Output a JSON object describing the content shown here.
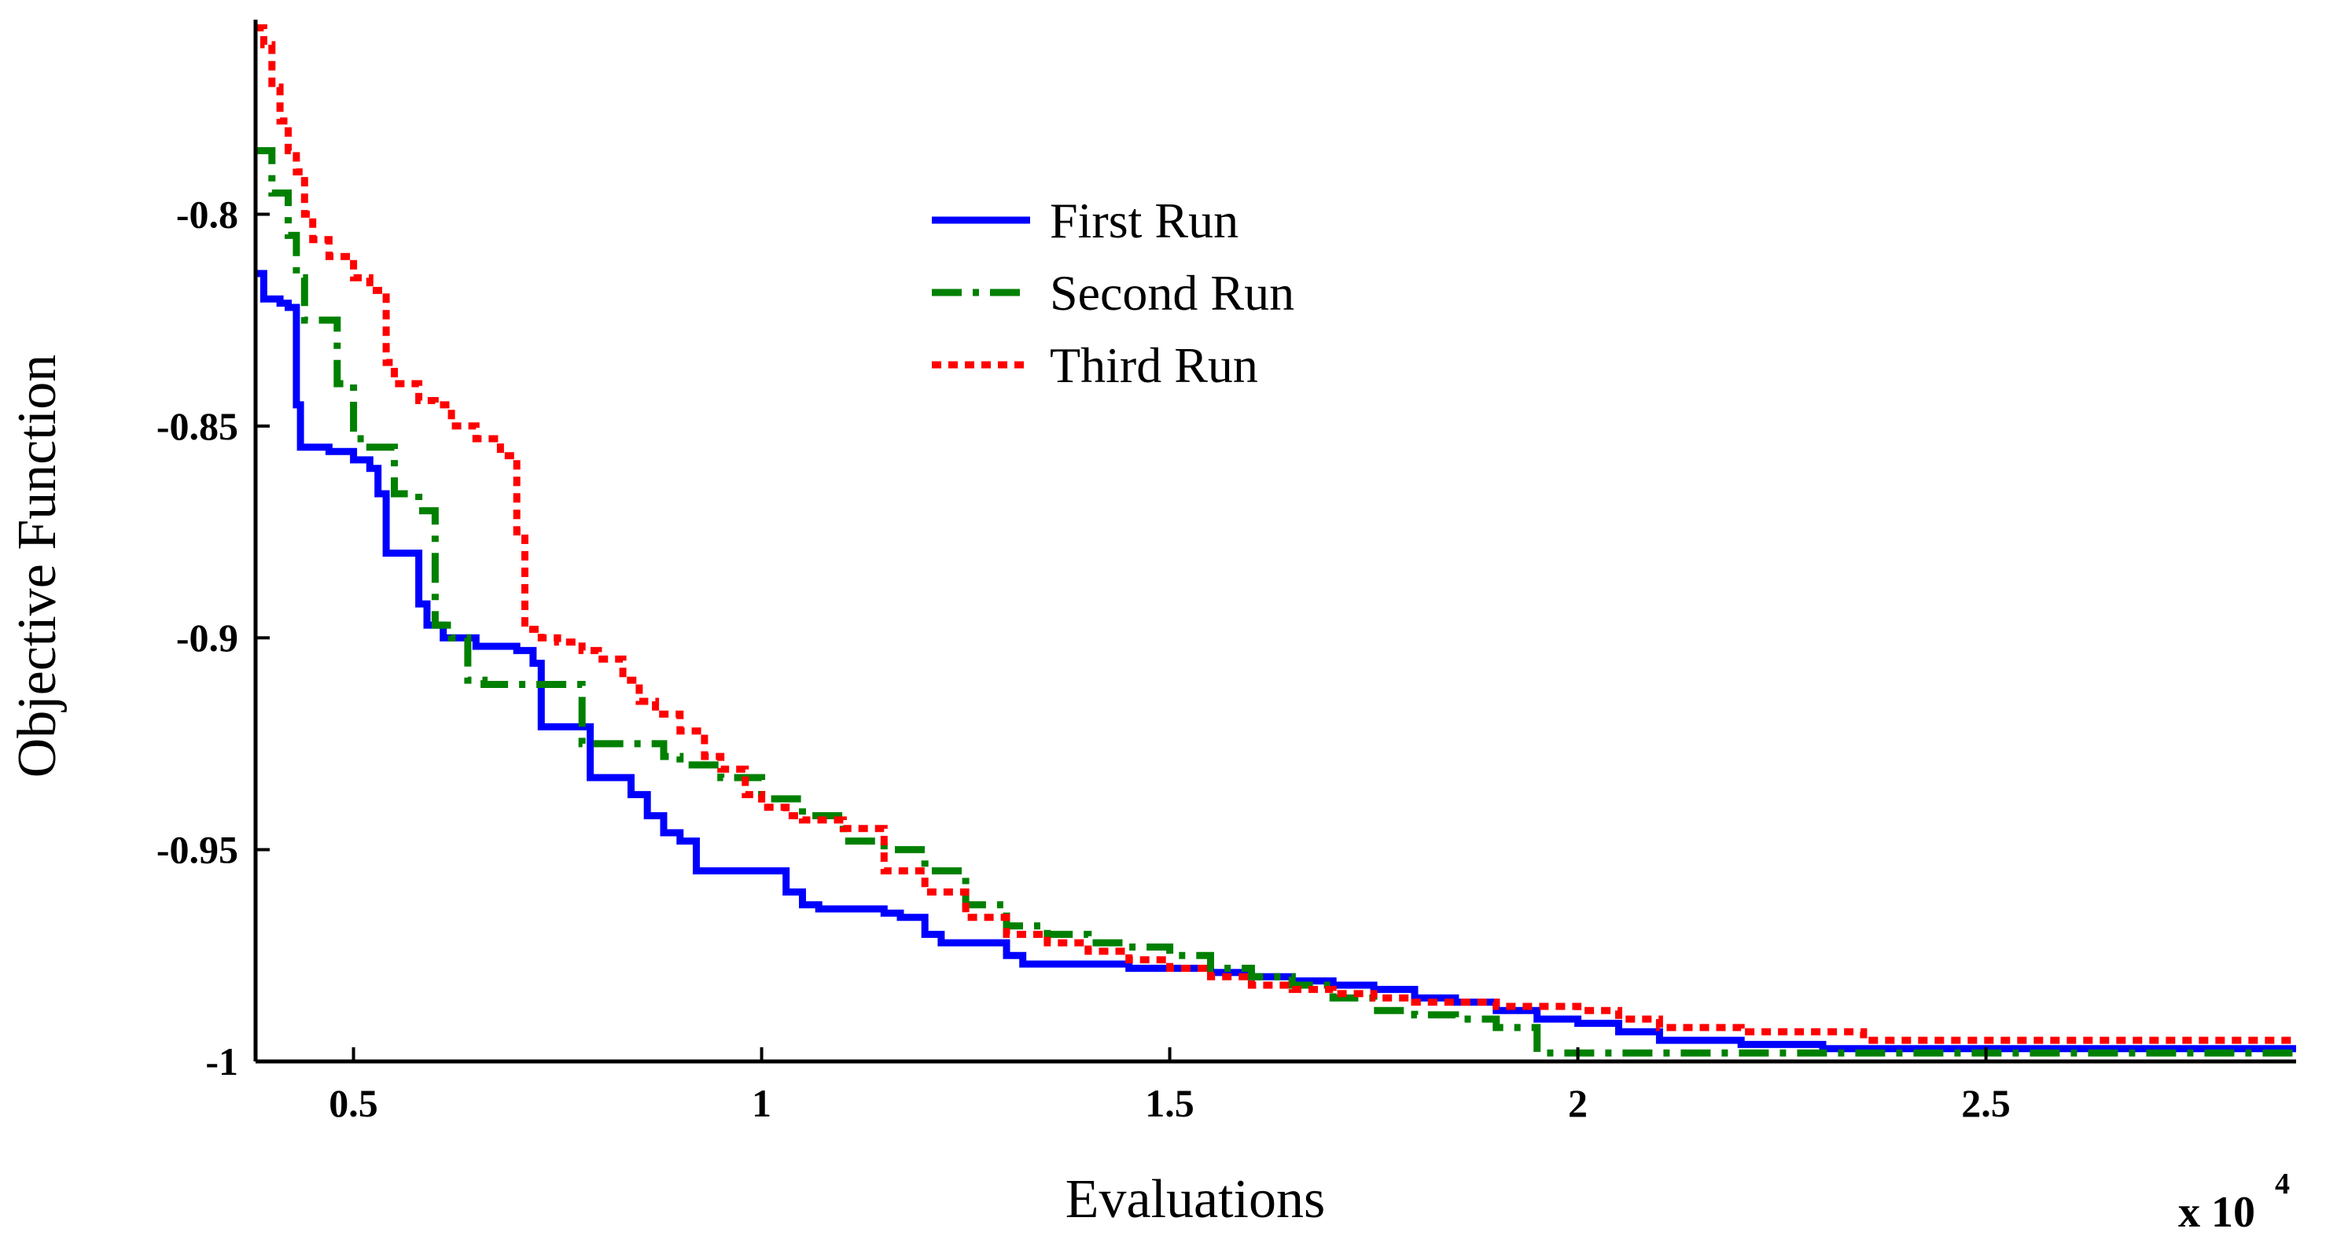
{
  "chart_data": {
    "type": "line",
    "title": "",
    "xlabel": "Evaluations",
    "ylabel": "Objective Function",
    "x_multiplier_base": "x 10",
    "x_multiplier_exp": "4",
    "xlim": [
      0.38,
      2.88
    ],
    "ylim": [
      -1.0,
      -0.755
    ],
    "x_ticks": [
      0.5,
      1,
      1.5,
      2,
      2.5
    ],
    "x_tick_labels": [
      "0.5",
      "1",
      "1.5",
      "2",
      "2.5"
    ],
    "y_ticks": [
      -0.8,
      -0.85,
      -0.9,
      -0.95,
      -1
    ],
    "y_tick_labels": [
      "-0.8",
      "-0.85",
      "-0.9",
      "-0.95",
      "-1"
    ],
    "grid": false,
    "legend_position": "top-center",
    "series": [
      {
        "name": "First Run",
        "color": "#0000ff",
        "style": "solid",
        "x": [
          0.38,
          0.39,
          0.41,
          0.42,
          0.43,
          0.435,
          0.47,
          0.5,
          0.52,
          0.53,
          0.54,
          0.58,
          0.59,
          0.61,
          0.65,
          0.7,
          0.72,
          0.73,
          0.78,
          0.79,
          0.83,
          0.84,
          0.86,
          0.88,
          0.9,
          0.92,
          0.94,
          0.96,
          1.0,
          1.03,
          1.05,
          1.07,
          1.1,
          1.15,
          1.17,
          1.2,
          1.22,
          1.26,
          1.3,
          1.32,
          1.35,
          1.4,
          1.45,
          1.5,
          1.55,
          1.6,
          1.65,
          1.7,
          1.75,
          1.8,
          1.85,
          1.9,
          1.95,
          2.0,
          2.05,
          2.1,
          2.2,
          2.3,
          2.5,
          2.7,
          2.88
        ],
        "y": [
          -0.814,
          -0.82,
          -0.821,
          -0.822,
          -0.845,
          -0.855,
          -0.856,
          -0.858,
          -0.86,
          -0.866,
          -0.88,
          -0.892,
          -0.897,
          -0.9,
          -0.902,
          -0.903,
          -0.906,
          -0.921,
          -0.921,
          -0.933,
          -0.933,
          -0.937,
          -0.942,
          -0.946,
          -0.948,
          -0.955,
          -0.955,
          -0.955,
          -0.955,
          -0.96,
          -0.963,
          -0.964,
          -0.964,
          -0.965,
          -0.966,
          -0.97,
          -0.972,
          -0.972,
          -0.975,
          -0.977,
          -0.977,
          -0.977,
          -0.978,
          -0.978,
          -0.979,
          -0.98,
          -0.981,
          -0.982,
          -0.983,
          -0.985,
          -0.986,
          -0.988,
          -0.99,
          -0.991,
          -0.993,
          -0.995,
          -0.996,
          -0.997,
          -0.997,
          -0.997,
          -0.997
        ]
      },
      {
        "name": "Second Run",
        "color": "#008000",
        "style": "dashdot",
        "x": [
          0.38,
          0.395,
          0.4,
          0.42,
          0.43,
          0.44,
          0.47,
          0.48,
          0.5,
          0.52,
          0.55,
          0.57,
          0.58,
          0.6,
          0.62,
          0.64,
          0.66,
          0.7,
          0.75,
          0.78,
          0.8,
          0.85,
          0.88,
          0.9,
          0.95,
          1.0,
          1.05,
          1.1,
          1.15,
          1.2,
          1.25,
          1.3,
          1.35,
          1.4,
          1.45,
          1.5,
          1.55,
          1.6,
          1.65,
          1.7,
          1.75,
          1.8,
          1.85,
          1.9,
          1.95,
          2.0,
          2.2,
          2.5,
          2.88
        ],
        "y": [
          -0.785,
          -0.785,
          -0.795,
          -0.805,
          -0.815,
          -0.825,
          -0.825,
          -0.84,
          -0.853,
          -0.855,
          -0.866,
          -0.866,
          -0.87,
          -0.897,
          -0.9,
          -0.91,
          -0.911,
          -0.911,
          -0.911,
          -0.925,
          -0.925,
          -0.925,
          -0.928,
          -0.93,
          -0.933,
          -0.938,
          -0.942,
          -0.948,
          -0.95,
          -0.955,
          -0.963,
          -0.968,
          -0.97,
          -0.972,
          -0.973,
          -0.975,
          -0.978,
          -0.98,
          -0.982,
          -0.985,
          -0.988,
          -0.989,
          -0.99,
          -0.992,
          -0.998,
          -0.998,
          -0.998,
          -0.998,
          -0.998
        ]
      },
      {
        "name": "Third Run",
        "color": "#ff0000",
        "style": "dotted",
        "x": [
          0.38,
          0.39,
          0.4,
          0.41,
          0.42,
          0.43,
          0.44,
          0.45,
          0.47,
          0.5,
          0.52,
          0.54,
          0.55,
          0.58,
          0.6,
          0.62,
          0.65,
          0.68,
          0.7,
          0.71,
          0.73,
          0.75,
          0.78,
          0.8,
          0.83,
          0.85,
          0.87,
          0.9,
          0.93,
          0.95,
          0.98,
          1.0,
          1.03,
          1.05,
          1.1,
          1.15,
          1.2,
          1.25,
          1.3,
          1.35,
          1.4,
          1.45,
          1.5,
          1.55,
          1.6,
          1.65,
          1.7,
          1.75,
          1.8,
          1.85,
          1.9,
          1.95,
          2.0,
          2.05,
          2.1,
          2.2,
          2.3,
          2.35,
          2.5,
          2.7,
          2.88
        ],
        "y": [
          -0.756,
          -0.76,
          -0.77,
          -0.778,
          -0.785,
          -0.79,
          -0.8,
          -0.806,
          -0.81,
          -0.815,
          -0.818,
          -0.835,
          -0.84,
          -0.844,
          -0.845,
          -0.85,
          -0.853,
          -0.857,
          -0.875,
          -0.898,
          -0.9,
          -0.901,
          -0.903,
          -0.905,
          -0.91,
          -0.915,
          -0.918,
          -0.922,
          -0.928,
          -0.931,
          -0.937,
          -0.94,
          -0.942,
          -0.943,
          -0.945,
          -0.955,
          -0.96,
          -0.966,
          -0.97,
          -0.972,
          -0.974,
          -0.976,
          -0.978,
          -0.98,
          -0.982,
          -0.983,
          -0.984,
          -0.985,
          -0.986,
          -0.986,
          -0.987,
          -0.987,
          -0.988,
          -0.99,
          -0.992,
          -0.993,
          -0.993,
          -0.995,
          -0.995,
          -0.995,
          -0.995
        ]
      }
    ]
  }
}
